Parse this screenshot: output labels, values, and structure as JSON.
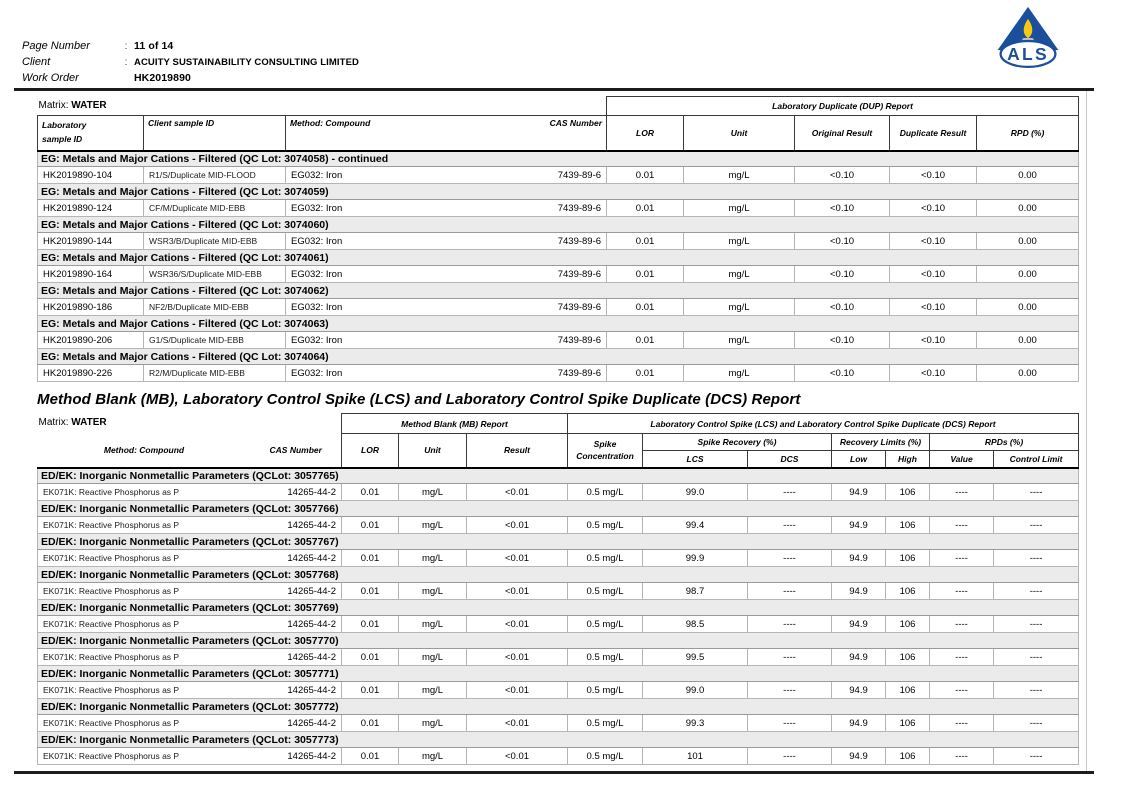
{
  "page_header": {
    "fields": [
      {
        "label": "Page Number",
        "sep": ":",
        "value": "11 of 14"
      },
      {
        "label": "Client",
        "sep": ":",
        "value": "ACUITY SUSTAINABILITY CONSULTING LIMITED"
      },
      {
        "label": "Work Order",
        "sep": "",
        "value": "HK2019890"
      }
    ],
    "logo": {
      "name": "als-flame-logo",
      "text": "ALS",
      "triangle_color": "#1b4e9b",
      "flame_color": "#f7c913",
      "candle_color": "#b9c2ca"
    }
  },
  "dup_table": {
    "matrix_label": "Matrix:",
    "matrix_value": "WATER",
    "group_header": "Laboratory Duplicate (DUP) Report",
    "columns": {
      "lab1": "Laboratory",
      "lab2": "sample ID",
      "client": "Client sample ID",
      "method": "Method: Compound",
      "cas": "CAS Number",
      "lor": "LOR",
      "unit": "Unit",
      "original": "Original Result",
      "duplicate": "Duplicate Result",
      "rpd": "RPD (%)"
    },
    "sections": [
      {
        "title": "EG: Metals and Major Cations - Filtered  (QC Lot: 3074058)  - continued",
        "rows": [
          {
            "lab_id": "HK2019890-104",
            "client_id": "R1/S/Duplicate MID-FLOOD",
            "method": "EG032: Iron",
            "cas": "7439-89-6",
            "lor": "0.01",
            "unit": "mg/L",
            "original": "<0.10",
            "duplicate": "<0.10",
            "rpd": "0.00"
          }
        ]
      },
      {
        "title": "EG: Metals and Major Cations - Filtered  (QC Lot: 3074059)",
        "rows": [
          {
            "lab_id": "HK2019890-124",
            "client_id": "CF/M/Duplicate MID-EBB",
            "method": "EG032: Iron",
            "cas": "7439-89-6",
            "lor": "0.01",
            "unit": "mg/L",
            "original": "<0.10",
            "duplicate": "<0.10",
            "rpd": "0.00"
          }
        ]
      },
      {
        "title": "EG: Metals and Major Cations - Filtered  (QC Lot: 3074060)",
        "rows": [
          {
            "lab_id": "HK2019890-144",
            "client_id": "WSR3/B/Duplicate MID-EBB",
            "method": "EG032: Iron",
            "cas": "7439-89-6",
            "lor": "0.01",
            "unit": "mg/L",
            "original": "<0.10",
            "duplicate": "<0.10",
            "rpd": "0.00"
          }
        ]
      },
      {
        "title": "EG: Metals and Major Cations - Filtered  (QC Lot: 3074061)",
        "rows": [
          {
            "lab_id": "HK2019890-164",
            "client_id": "WSR36/S/Duplicate MID-EBB",
            "method": "EG032: Iron",
            "cas": "7439-89-6",
            "lor": "0.01",
            "unit": "mg/L",
            "original": "<0.10",
            "duplicate": "<0.10",
            "rpd": "0.00"
          }
        ]
      },
      {
        "title": "EG: Metals and Major Cations - Filtered  (QC Lot: 3074062)",
        "rows": [
          {
            "lab_id": "HK2019890-186",
            "client_id": "NF2/B/Duplicate MID-EBB",
            "method": "EG032: Iron",
            "cas": "7439-89-6",
            "lor": "0.01",
            "unit": "mg/L",
            "original": "<0.10",
            "duplicate": "<0.10",
            "rpd": "0.00"
          }
        ]
      },
      {
        "title": "EG: Metals and Major Cations - Filtered  (QC Lot: 3074063)",
        "rows": [
          {
            "lab_id": "HK2019890-206",
            "client_id": "G1/S/Duplicate MID-EBB",
            "method": "EG032: Iron",
            "cas": "7439-89-6",
            "lor": "0.01",
            "unit": "mg/L",
            "original": "<0.10",
            "duplicate": "<0.10",
            "rpd": "0.00"
          }
        ]
      },
      {
        "title": "EG: Metals and Major Cations - Filtered  (QC Lot: 3074064)",
        "rows": [
          {
            "lab_id": "HK2019890-226",
            "client_id": "R2/M/Duplicate MID-EBB",
            "method": "EG032: Iron",
            "cas": "7439-89-6",
            "lor": "0.01",
            "unit": "mg/L",
            "original": "<0.10",
            "duplicate": "<0.10",
            "rpd": "0.00"
          }
        ]
      }
    ]
  },
  "mb_table": {
    "title": "Method Blank (MB), Laboratory Control Spike (LCS) and Laboratory Control Spike Duplicate (DCS) Report",
    "matrix_label": "Matrix:",
    "matrix_value": "WATER",
    "groups": {
      "mb": "Method Blank (MB) Report",
      "lcs_dcs": "Laboratory Control Spike (LCS) and Laboratory Control Spike Duplicate (DCS) Report"
    },
    "columns": {
      "method": "Method: Compound",
      "cas": "CAS Number",
      "lor": "LOR",
      "unit": "Unit",
      "result": "Result",
      "spike1": "Spike",
      "spike2": "Concentration",
      "recovery": "Spike Recovery (%)",
      "lcs": "LCS",
      "dcs": "DCS",
      "limits": "Recovery Limits (%)",
      "low": "Low",
      "high": "High",
      "rpds": "RPDs (%)",
      "value": "Value",
      "control": "Control Limit"
    },
    "sections": [
      {
        "title": "ED/EK: Inorganic Nonmetallic Parameters  (QCLot: 3057765)",
        "rows": [
          {
            "method": "EK071K: Reactive Phosphorus as P",
            "cas": "14265-44-2",
            "lor": "0.01",
            "unit": "mg/L",
            "result": "<0.01",
            "spike_concentration": "0.5 mg/L",
            "lcs": "99.0",
            "dcs": "----",
            "low": "94.9",
            "high": "106",
            "value": "----",
            "control_limit": "----"
          }
        ]
      },
      {
        "title": "ED/EK: Inorganic Nonmetallic Parameters  (QCLot: 3057766)",
        "rows": [
          {
            "method": "EK071K: Reactive Phosphorus as P",
            "cas": "14265-44-2",
            "lor": "0.01",
            "unit": "mg/L",
            "result": "<0.01",
            "spike_concentration": "0.5 mg/L",
            "lcs": "99.4",
            "dcs": "----",
            "low": "94.9",
            "high": "106",
            "value": "----",
            "control_limit": "----"
          }
        ]
      },
      {
        "title": "ED/EK: Inorganic Nonmetallic Parameters  (QCLot: 3057767)",
        "rows": [
          {
            "method": "EK071K: Reactive Phosphorus as P",
            "cas": "14265-44-2",
            "lor": "0.01",
            "unit": "mg/L",
            "result": "<0.01",
            "spike_concentration": "0.5 mg/L",
            "lcs": "99.9",
            "dcs": "----",
            "low": "94.9",
            "high": "106",
            "value": "----",
            "control_limit": "----"
          }
        ]
      },
      {
        "title": "ED/EK: Inorganic Nonmetallic Parameters  (QCLot: 3057768)",
        "rows": [
          {
            "method": "EK071K: Reactive Phosphorus as P",
            "cas": "14265-44-2",
            "lor": "0.01",
            "unit": "mg/L",
            "result": "<0.01",
            "spike_concentration": "0.5 mg/L",
            "lcs": "98.7",
            "dcs": "----",
            "low": "94.9",
            "high": "106",
            "value": "----",
            "control_limit": "----"
          }
        ]
      },
      {
        "title": "ED/EK: Inorganic Nonmetallic Parameters  (QCLot: 3057769)",
        "rows": [
          {
            "method": "EK071K: Reactive Phosphorus as P",
            "cas": "14265-44-2",
            "lor": "0.01",
            "unit": "mg/L",
            "result": "<0.01",
            "spike_concentration": "0.5 mg/L",
            "lcs": "98.5",
            "dcs": "----",
            "low": "94.9",
            "high": "106",
            "value": "----",
            "control_limit": "----"
          }
        ]
      },
      {
        "title": "ED/EK: Inorganic Nonmetallic Parameters  (QCLot: 3057770)",
        "rows": [
          {
            "method": "EK071K: Reactive Phosphorus as P",
            "cas": "14265-44-2",
            "lor": "0.01",
            "unit": "mg/L",
            "result": "<0.01",
            "spike_concentration": "0.5 mg/L",
            "lcs": "99.5",
            "dcs": "----",
            "low": "94.9",
            "high": "106",
            "value": "----",
            "control_limit": "----"
          }
        ]
      },
      {
        "title": "ED/EK: Inorganic Nonmetallic Parameters  (QCLot: 3057771)",
        "rows": [
          {
            "method": "EK071K: Reactive Phosphorus as P",
            "cas": "14265-44-2",
            "lor": "0.01",
            "unit": "mg/L",
            "result": "<0.01",
            "spike_concentration": "0.5 mg/L",
            "lcs": "99.0",
            "dcs": "----",
            "low": "94.9",
            "high": "106",
            "value": "----",
            "control_limit": "----"
          }
        ]
      },
      {
        "title": "ED/EK: Inorganic Nonmetallic Parameters  (QCLot: 3057772)",
        "rows": [
          {
            "method": "EK071K: Reactive Phosphorus as P",
            "cas": "14265-44-2",
            "lor": "0.01",
            "unit": "mg/L",
            "result": "<0.01",
            "spike_concentration": "0.5 mg/L",
            "lcs": "99.3",
            "dcs": "----",
            "low": "94.9",
            "high": "106",
            "value": "----",
            "control_limit": "----"
          }
        ]
      },
      {
        "title": "ED/EK: Inorganic Nonmetallic Parameters  (QCLot: 3057773)",
        "rows": [
          {
            "method": "EK071K: Reactive Phosphorus as P",
            "cas": "14265-44-2",
            "lor": "0.01",
            "unit": "mg/L",
            "result": "<0.01",
            "spike_concentration": "0.5 mg/L",
            "lcs": "101",
            "dcs": "----",
            "low": "94.9",
            "high": "106",
            "value": "----",
            "control_limit": "----"
          }
        ]
      }
    ]
  }
}
